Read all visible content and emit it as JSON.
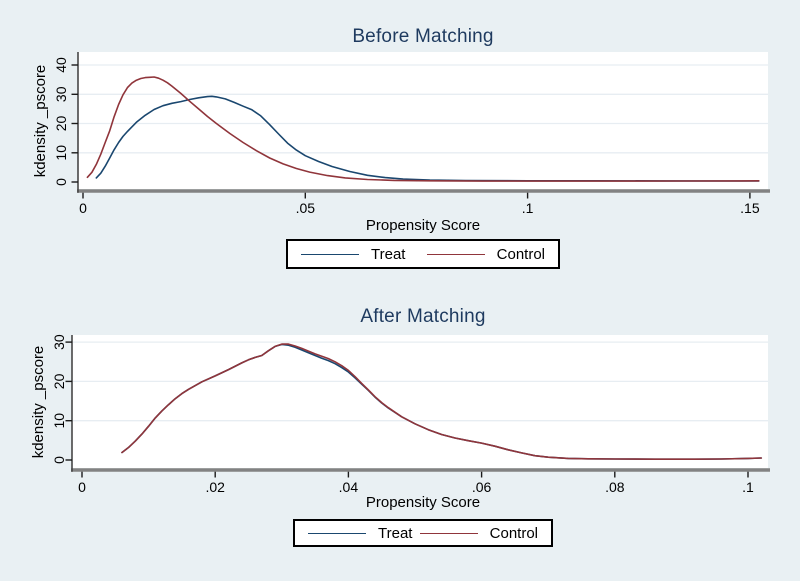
{
  "colors": {
    "background": "#e9f0f3",
    "plot_bg": "#ffffff",
    "grid": "#e7edf2",
    "axis_line": "#828282",
    "axis_dark": "#474747",
    "tick": "#1a1a1a",
    "title": "#1e3a5f",
    "treat": "#1a476f",
    "control": "#90353b"
  },
  "chart_data": [
    {
      "type": "line",
      "title": "Before Matching",
      "xlabel": "Propensity Score",
      "ylabel": "kdensity _pscore",
      "xlim": [
        0,
        0.155
      ],
      "ylim": [
        0,
        40
      ],
      "grid": "horizontal",
      "legend_position": "bottom-center",
      "x_ticks": [
        {
          "v": 0,
          "label": "0"
        },
        {
          "v": 0.05,
          "label": ".05"
        },
        {
          "v": 0.1,
          "label": ".1"
        },
        {
          "v": 0.15,
          "label": ".15"
        }
      ],
      "y_ticks": [
        {
          "v": 0,
          "label": "0"
        },
        {
          "v": 10,
          "label": "10"
        },
        {
          "v": 20,
          "label": "20"
        },
        {
          "v": 30,
          "label": "30"
        },
        {
          "v": 40,
          "label": "40"
        }
      ],
      "series": [
        {
          "name": "Treat",
          "color": "#1a476f",
          "points": [
            [
              0.003,
              1.4
            ],
            [
              0.004,
              3.0
            ],
            [
              0.005,
              5.4
            ],
            [
              0.006,
              8.2
            ],
            [
              0.007,
              11.0
            ],
            [
              0.008,
              13.5
            ],
            [
              0.009,
              15.6
            ],
            [
              0.01,
              17.3
            ],
            [
              0.012,
              20.4
            ],
            [
              0.014,
              22.8
            ],
            [
              0.016,
              24.8
            ],
            [
              0.018,
              26.1
            ],
            [
              0.02,
              26.9
            ],
            [
              0.022,
              27.5
            ],
            [
              0.024,
              28.2
            ],
            [
              0.026,
              28.8
            ],
            [
              0.028,
              29.2
            ],
            [
              0.029,
              29.3
            ],
            [
              0.03,
              29.1
            ],
            [
              0.032,
              28.4
            ],
            [
              0.034,
              27.2
            ],
            [
              0.036,
              25.9
            ],
            [
              0.038,
              24.7
            ],
            [
              0.04,
              22.6
            ],
            [
              0.042,
              19.6
            ],
            [
              0.044,
              16.4
            ],
            [
              0.046,
              13.3
            ],
            [
              0.048,
              10.9
            ],
            [
              0.05,
              9.0
            ],
            [
              0.053,
              7.0
            ],
            [
              0.056,
              5.3
            ],
            [
              0.06,
              3.6
            ],
            [
              0.064,
              2.3
            ],
            [
              0.068,
              1.5
            ],
            [
              0.072,
              1.0
            ],
            [
              0.078,
              0.65
            ],
            [
              0.086,
              0.5
            ],
            [
              0.1,
              0.42
            ],
            [
              0.115,
              0.4
            ],
            [
              0.13,
              0.37
            ],
            [
              0.145,
              0.35
            ],
            [
              0.152,
              0.35
            ]
          ]
        },
        {
          "name": "Control",
          "color": "#90353b",
          "points": [
            [
              0.001,
              1.6
            ],
            [
              0.002,
              3.3
            ],
            [
              0.003,
              6.0
            ],
            [
              0.004,
              9.5
            ],
            [
              0.005,
              13.5
            ],
            [
              0.006,
              17.5
            ],
            [
              0.007,
              22.3
            ],
            [
              0.008,
              26.5
            ],
            [
              0.009,
              29.8
            ],
            [
              0.01,
              32.3
            ],
            [
              0.011,
              33.8
            ],
            [
              0.012,
              34.8
            ],
            [
              0.013,
              35.4
            ],
            [
              0.014,
              35.7
            ],
            [
              0.015,
              35.8
            ],
            [
              0.016,
              35.9
            ],
            [
              0.017,
              35.5
            ],
            [
              0.018,
              34.8
            ],
            [
              0.019,
              33.9
            ],
            [
              0.02,
              32.8
            ],
            [
              0.022,
              30.3
            ],
            [
              0.024,
              27.6
            ],
            [
              0.026,
              25.0
            ],
            [
              0.028,
              22.4
            ],
            [
              0.03,
              20.0
            ],
            [
              0.033,
              16.6
            ],
            [
              0.036,
              13.5
            ],
            [
              0.039,
              10.7
            ],
            [
              0.042,
              8.2
            ],
            [
              0.045,
              6.2
            ],
            [
              0.048,
              4.6
            ],
            [
              0.051,
              3.4
            ],
            [
              0.055,
              2.2
            ],
            [
              0.059,
              1.4
            ],
            [
              0.064,
              0.85
            ],
            [
              0.07,
              0.55
            ],
            [
              0.078,
              0.4
            ],
            [
              0.09,
              0.32
            ],
            [
              0.105,
              0.3
            ],
            [
              0.12,
              0.3
            ],
            [
              0.135,
              0.33
            ],
            [
              0.148,
              0.38
            ],
            [
              0.152,
              0.42
            ]
          ]
        }
      ]
    },
    {
      "type": "line",
      "title": "After Matching",
      "xlabel": "Propensity Score",
      "ylabel": "kdensity _pscore",
      "xlim": [
        0,
        0.103
      ],
      "ylim": [
        0,
        30
      ],
      "grid": "horizontal",
      "legend_position": "bottom-center",
      "x_ticks": [
        {
          "v": 0,
          "label": "0"
        },
        {
          "v": 0.02,
          "label": ".02"
        },
        {
          "v": 0.04,
          "label": ".04"
        },
        {
          "v": 0.06,
          "label": ".06"
        },
        {
          "v": 0.08,
          "label": ".08"
        },
        {
          "v": 0.1,
          "label": ".1"
        }
      ],
      "y_ticks": [
        {
          "v": 0,
          "label": "0"
        },
        {
          "v": 10,
          "label": "10"
        },
        {
          "v": 20,
          "label": "20"
        },
        {
          "v": 30,
          "label": "30"
        }
      ],
      "series": [
        {
          "name": "Treat",
          "color": "#1a476f",
          "points": [
            [
              0.006,
              1.9
            ],
            [
              0.007,
              3.2
            ],
            [
              0.008,
              4.8
            ],
            [
              0.009,
              6.6
            ],
            [
              0.01,
              8.6
            ],
            [
              0.011,
              10.7
            ],
            [
              0.012,
              12.5
            ],
            [
              0.013,
              14.1
            ],
            [
              0.014,
              15.6
            ],
            [
              0.015,
              16.9
            ],
            [
              0.016,
              18.0
            ],
            [
              0.018,
              19.9
            ],
            [
              0.02,
              21.4
            ],
            [
              0.022,
              23.0
            ],
            [
              0.024,
              24.7
            ],
            [
              0.025,
              25.5
            ],
            [
              0.026,
              26.1
            ],
            [
              0.027,
              26.6
            ],
            [
              0.028,
              27.8
            ],
            [
              0.029,
              28.9
            ],
            [
              0.03,
              29.4
            ],
            [
              0.031,
              29.2
            ],
            [
              0.032,
              28.7
            ],
            [
              0.033,
              28.0
            ],
            [
              0.034,
              27.3
            ],
            [
              0.035,
              26.6
            ],
            [
              0.036,
              25.9
            ],
            [
              0.037,
              25.3
            ],
            [
              0.038,
              24.5
            ],
            [
              0.039,
              23.5
            ],
            [
              0.04,
              22.4
            ],
            [
              0.041,
              20.9
            ],
            [
              0.042,
              19.3
            ],
            [
              0.043,
              17.7
            ],
            [
              0.044,
              16.0
            ],
            [
              0.045,
              14.5
            ],
            [
              0.046,
              13.2
            ],
            [
              0.048,
              11.0
            ],
            [
              0.05,
              9.2
            ],
            [
              0.052,
              7.7
            ],
            [
              0.054,
              6.5
            ],
            [
              0.056,
              5.6
            ],
            [
              0.058,
              4.9
            ],
            [
              0.06,
              4.3
            ],
            [
              0.062,
              3.5
            ],
            [
              0.064,
              2.6
            ],
            [
              0.066,
              1.8
            ],
            [
              0.068,
              1.1
            ],
            [
              0.07,
              0.7
            ],
            [
              0.073,
              0.4
            ],
            [
              0.076,
              0.3
            ],
            [
              0.08,
              0.25
            ],
            [
              0.086,
              0.2
            ],
            [
              0.092,
              0.2
            ],
            [
              0.096,
              0.25
            ],
            [
              0.1,
              0.4
            ],
            [
              0.102,
              0.5
            ]
          ]
        },
        {
          "name": "Control",
          "color": "#90353b",
          "points": [
            [
              0.006,
              1.9
            ],
            [
              0.007,
              3.2
            ],
            [
              0.008,
              4.8
            ],
            [
              0.009,
              6.6
            ],
            [
              0.01,
              8.6
            ],
            [
              0.011,
              10.7
            ],
            [
              0.012,
              12.5
            ],
            [
              0.013,
              14.1
            ],
            [
              0.014,
              15.6
            ],
            [
              0.015,
              16.9
            ],
            [
              0.016,
              18.0
            ],
            [
              0.018,
              19.9
            ],
            [
              0.02,
              21.4
            ],
            [
              0.022,
              23.0
            ],
            [
              0.024,
              24.7
            ],
            [
              0.025,
              25.5
            ],
            [
              0.026,
              26.1
            ],
            [
              0.027,
              26.6
            ],
            [
              0.028,
              27.8
            ],
            [
              0.029,
              28.9
            ],
            [
              0.03,
              29.5
            ],
            [
              0.031,
              29.5
            ],
            [
              0.032,
              29.0
            ],
            [
              0.033,
              28.4
            ],
            [
              0.034,
              27.7
            ],
            [
              0.035,
              27.0
            ],
            [
              0.036,
              26.4
            ],
            [
              0.037,
              25.8
            ],
            [
              0.038,
              25.0
            ],
            [
              0.039,
              24.0
            ],
            [
              0.04,
              22.8
            ],
            [
              0.041,
              21.2
            ],
            [
              0.042,
              19.5
            ],
            [
              0.043,
              17.8
            ],
            [
              0.044,
              16.1
            ],
            [
              0.045,
              14.6
            ],
            [
              0.046,
              13.3
            ],
            [
              0.048,
              11.0
            ],
            [
              0.05,
              9.2
            ],
            [
              0.052,
              7.7
            ],
            [
              0.054,
              6.5
            ],
            [
              0.056,
              5.6
            ],
            [
              0.058,
              4.9
            ],
            [
              0.06,
              4.3
            ],
            [
              0.062,
              3.5
            ],
            [
              0.064,
              2.6
            ],
            [
              0.066,
              1.8
            ],
            [
              0.068,
              1.1
            ],
            [
              0.07,
              0.7
            ],
            [
              0.073,
              0.4
            ],
            [
              0.076,
              0.3
            ],
            [
              0.08,
              0.25
            ],
            [
              0.086,
              0.2
            ],
            [
              0.092,
              0.2
            ],
            [
              0.096,
              0.25
            ],
            [
              0.1,
              0.4
            ],
            [
              0.102,
              0.5
            ]
          ]
        }
      ]
    }
  ]
}
